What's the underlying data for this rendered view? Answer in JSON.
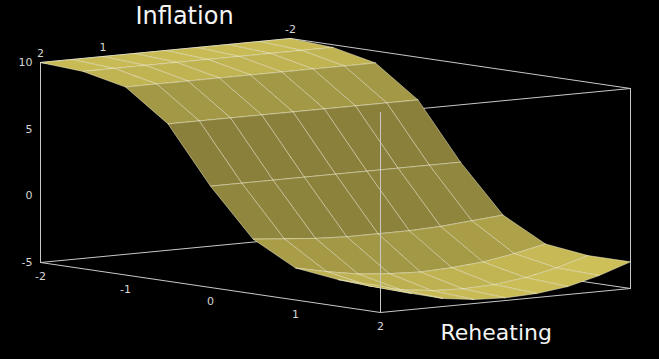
{
  "chart_data": {
    "type": "surface",
    "title": "Inflation",
    "annotations": [
      "Reheating"
    ],
    "x": [
      -2,
      -1.5,
      -1,
      -0.5,
      0,
      0.5,
      1,
      1.5,
      2
    ],
    "y": [
      -2,
      -1.5,
      -1,
      -0.5,
      0,
      0.5,
      1,
      1.5,
      2
    ],
    "z": [
      [
        10,
        10,
        10,
        10,
        10,
        10,
        10,
        10,
        10
      ],
      [
        9.8,
        9.8,
        9.8,
        9.8,
        9.8,
        9.8,
        9.8,
        9.8,
        9.8
      ],
      [
        9.1,
        9.1,
        9.1,
        9.1,
        9.1,
        9.1,
        9.1,
        9.1,
        9.1
      ],
      [
        6.8,
        6.8,
        6.8,
        6.8,
        6.8,
        6.8,
        6.8,
        6.8,
        6.8
      ],
      [
        2.6,
        2.6,
        2.6,
        2.6,
        2.6,
        2.6,
        2.6,
        2.6,
        2.6
      ],
      [
        -0.9,
        -1.1,
        -1.3,
        -1.4,
        -1.4,
        -1.4,
        -1.3,
        -1.1,
        -0.9
      ],
      [
        -2.6,
        -3.1,
        -3.5,
        -3.7,
        -3.8,
        -3.7,
        -3.5,
        -3.1,
        -2.6
      ],
      [
        -3,
        -3.7,
        -4.2,
        -4.5,
        -4.6,
        -4.5,
        -4.2,
        -3.7,
        -3
      ],
      [
        -3,
        -3.8,
        -4.4,
        -4.7,
        -4.8,
        -4.7,
        -4.4,
        -3.8,
        -3
      ]
    ],
    "xlim": [
      -2,
      2
    ],
    "xticks": [
      -2,
      -1,
      0,
      1,
      2
    ],
    "ylim": [
      -2,
      2
    ],
    "yticks": [
      2,
      1,
      -2
    ],
    "zlim": [
      -5,
      10
    ],
    "zticks": [
      10,
      5,
      0,
      -5
    ],
    "color": "#d8c95c",
    "grid": true
  }
}
